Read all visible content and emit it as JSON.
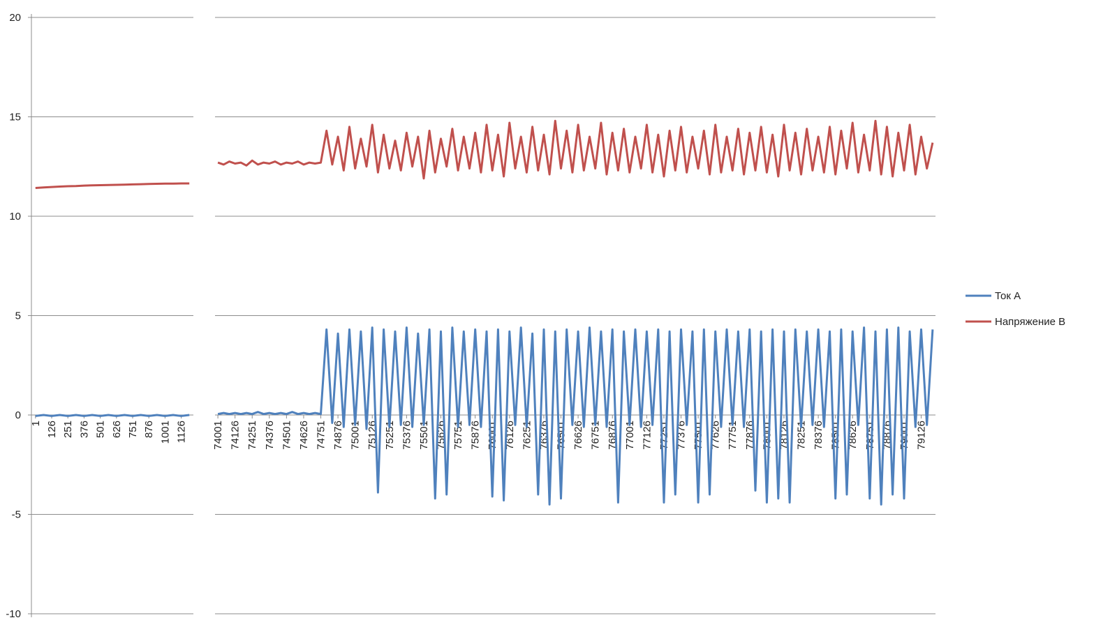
{
  "chart_data": [
    {
      "type": "line",
      "ylim": [
        -10,
        20
      ],
      "yticks": [
        -10,
        -5,
        0,
        5,
        10,
        15,
        20
      ],
      "grid": true,
      "categories": [
        1,
        null,
        126,
        null,
        251,
        null,
        376,
        null,
        501,
        null,
        626,
        null,
        751,
        null,
        876,
        null,
        1001,
        null,
        1126,
        null
      ],
      "series": [
        {
          "color": "#4f81bd",
          "values": [
            -0.05,
            0,
            -0.05,
            0,
            -0.05,
            0,
            -0.05,
            0,
            -0.05,
            0,
            -0.05,
            0,
            -0.05,
            0,
            -0.05,
            0,
            -0.05,
            0,
            -0.05,
            0
          ]
        },
        {
          "color": "#c0504d",
          "values": [
            11.42,
            11.45,
            11.47,
            11.49,
            11.51,
            11.52,
            11.54,
            11.55,
            11.56,
            11.57,
            11.58,
            11.59,
            11.6,
            11.61,
            11.62,
            11.63,
            11.64,
            11.64,
            11.65,
            11.65
          ]
        }
      ]
    },
    {
      "type": "line",
      "ylim": [
        -10,
        20
      ],
      "yticks": [
        -10,
        -5,
        0,
        5,
        10,
        15,
        20
      ],
      "grid": true,
      "legend": "right",
      "categories": [
        74001,
        null,
        null,
        74126,
        null,
        null,
        74251,
        null,
        null,
        74376,
        null,
        null,
        74501,
        null,
        null,
        74626,
        null,
        null,
        74751,
        null,
        null,
        74876,
        null,
        null,
        75001,
        null,
        null,
        75126,
        null,
        null,
        75251,
        null,
        null,
        75376,
        null,
        null,
        75501,
        null,
        null,
        75626,
        null,
        null,
        75751,
        null,
        null,
        75876,
        null,
        null,
        76001,
        null,
        null,
        76126,
        null,
        null,
        76251,
        null,
        null,
        76376,
        null,
        null,
        76501,
        null,
        null,
        76626,
        null,
        null,
        76751,
        null,
        null,
        76876,
        null,
        null,
        77001,
        null,
        null,
        77126,
        null,
        null,
        77251,
        null,
        null,
        77376,
        null,
        null,
        77501,
        null,
        null,
        77626,
        null,
        null,
        77751,
        null,
        null,
        77876,
        null,
        null,
        78001,
        null,
        null,
        78126,
        null,
        null,
        78251,
        null,
        null,
        78376,
        null,
        null,
        78501,
        null,
        null,
        78626,
        null,
        null,
        78751,
        null,
        null,
        78876,
        null,
        null,
        79001,
        null,
        null,
        79126,
        null,
        null
      ],
      "series": [
        {
          "name": "Ток А",
          "color": "#4f81bd",
          "values": [
            0.05,
            0.1,
            0.05,
            0.1,
            0.05,
            0.1,
            0.05,
            0.15,
            0.05,
            0.1,
            0.05,
            0.1,
            0.05,
            0.15,
            0.05,
            0.1,
            0.05,
            0.1,
            0.05,
            4.3,
            -0.4,
            4.1,
            -0.6,
            4.3,
            -0.5,
            4.2,
            -0.7,
            4.4,
            -3.9,
            4.3,
            -0.6,
            4.2,
            -0.5,
            4.4,
            -0.6,
            4.1,
            -0.5,
            4.3,
            -4.2,
            4.2,
            -4.0,
            4.4,
            -0.6,
            4.2,
            -0.5,
            4.3,
            -0.6,
            4.2,
            -4.1,
            4.3,
            -4.3,
            4.2,
            -0.5,
            4.4,
            -0.6,
            4.1,
            -4.0,
            4.3,
            -4.5,
            4.2,
            -4.2,
            4.3,
            -0.5,
            4.2,
            -0.6,
            4.4,
            -0.5,
            4.2,
            -0.6,
            4.3,
            -4.4,
            4.2,
            -0.5,
            4.3,
            -0.6,
            4.2,
            -0.5,
            4.3,
            -4.4,
            4.2,
            -4.0,
            4.3,
            -0.5,
            4.2,
            -4.4,
            4.3,
            -4.0,
            4.2,
            -0.6,
            4.3,
            -0.5,
            4.2,
            -0.6,
            4.3,
            -3.8,
            4.2,
            -4.4,
            4.3,
            -4.2,
            4.2,
            -4.4,
            4.3,
            -0.6,
            4.2,
            -0.5,
            4.3,
            -0.6,
            4.2,
            -4.2,
            4.3,
            -4.0,
            4.2,
            -0.5,
            4.4,
            -4.2,
            4.2,
            -4.5,
            4.3,
            -4.0,
            4.4,
            -4.2,
            4.2,
            -0.6,
            4.3,
            -0.5,
            4.3
          ]
        },
        {
          "name": "Напряжение В",
          "color": "#c0504d",
          "values": [
            12.7,
            12.6,
            12.75,
            12.65,
            12.7,
            12.55,
            12.8,
            12.6,
            12.7,
            12.65,
            12.75,
            12.6,
            12.7,
            12.65,
            12.75,
            12.6,
            12.7,
            12.65,
            12.7,
            14.3,
            12.6,
            14.0,
            12.3,
            14.5,
            12.4,
            13.9,
            12.5,
            14.6,
            12.2,
            14.1,
            12.4,
            13.8,
            12.3,
            14.2,
            12.5,
            14.0,
            11.9,
            14.3,
            12.2,
            13.9,
            12.5,
            14.4,
            12.3,
            14.0,
            12.4,
            14.2,
            12.2,
            14.6,
            12.3,
            14.1,
            12.0,
            14.7,
            12.4,
            14.0,
            12.2,
            14.5,
            12.3,
            14.1,
            12.1,
            14.8,
            12.4,
            14.3,
            12.2,
            14.6,
            12.3,
            14.0,
            12.4,
            14.7,
            12.1,
            14.2,
            12.3,
            14.4,
            12.2,
            14.0,
            12.4,
            14.6,
            12.2,
            14.1,
            12.0,
            14.3,
            12.3,
            14.5,
            12.2,
            14.0,
            12.4,
            14.3,
            12.1,
            14.6,
            12.2,
            14.0,
            12.3,
            14.4,
            12.1,
            14.2,
            12.3,
            14.5,
            12.2,
            14.1,
            12.0,
            14.6,
            12.3,
            14.2,
            12.1,
            14.4,
            12.3,
            14.0,
            12.2,
            14.5,
            12.1,
            14.3,
            12.4,
            14.7,
            12.2,
            14.1,
            12.3,
            14.8,
            12.1,
            14.5,
            12.0,
            14.2,
            12.3,
            14.6,
            12.1,
            14.0,
            12.4,
            13.7
          ]
        }
      ]
    }
  ]
}
